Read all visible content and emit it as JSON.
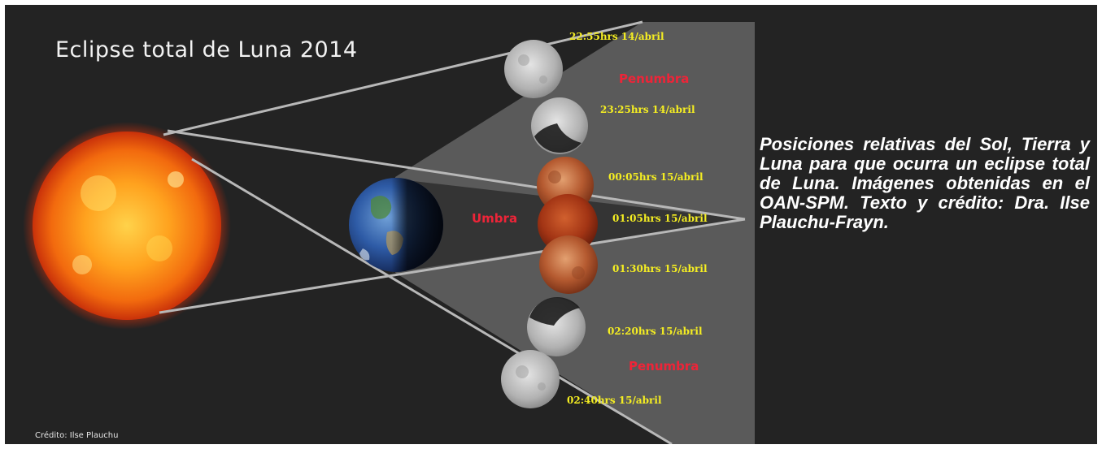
{
  "title": "Eclipse total de Luna 2014",
  "caption": "Posiciones relativas del Sol, Tierra y Luna para que ocurra un eclipse total de Luna. Imágenes obtenidas en el OAN-SPM. Texto y crédito: Dra. Ilse Plauchu-Frayn.",
  "credit": "Crédito: Ilse Plauchu",
  "zones": {
    "umbra": "Umbra",
    "penumbra_top": "Penumbra",
    "penumbra_bottom": "Penumbra"
  },
  "moon_phases": [
    {
      "time": "22:55hrs 14/abril",
      "state": "full"
    },
    {
      "time": "23:25hrs 14/abril",
      "state": "partial-dark-bottom-left"
    },
    {
      "time": "00:05hrs 15/abril",
      "state": "partial-red"
    },
    {
      "time": "01:05hrs 15/abril",
      "state": "total-red"
    },
    {
      "time": "01:30hrs 15/abril",
      "state": "partial-red"
    },
    {
      "time": "02:20hrs 15/abril",
      "state": "partial-dark-top-left"
    },
    {
      "time": "02:40hrs 15/abril",
      "state": "full"
    }
  ],
  "colors": {
    "background": "#232323",
    "time_label": "#f5ee22",
    "zone_label": "#ee2438",
    "shadow_cone": "#5e5e5e"
  }
}
